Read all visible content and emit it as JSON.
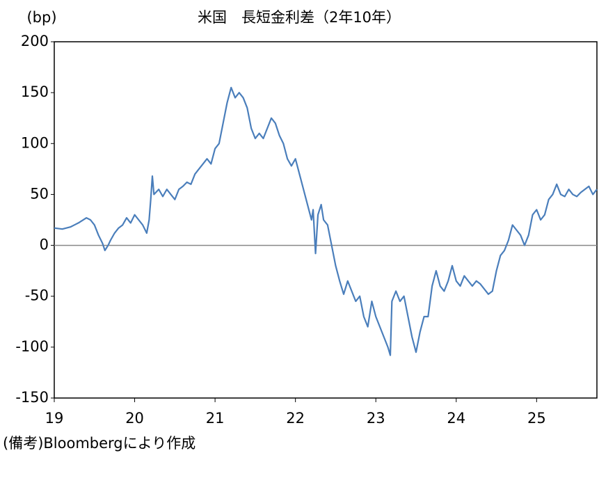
{
  "chart_data": {
    "type": "line",
    "title": "米国　長短金利差（2年10年）",
    "y_label": "(bp)",
    "note": "(備考)Bloombergにより作成",
    "x": [
      19.0,
      19.1,
      19.2,
      19.25,
      19.3,
      19.4,
      19.45,
      19.5,
      19.55,
      19.6,
      19.63,
      19.67,
      19.7,
      19.75,
      19.8,
      19.85,
      19.9,
      19.95,
      20.0,
      20.05,
      20.1,
      20.15,
      20.18,
      20.2,
      20.22,
      20.24,
      20.3,
      20.35,
      20.4,
      20.45,
      20.5,
      20.55,
      20.6,
      20.65,
      20.7,
      20.75,
      20.8,
      20.85,
      20.9,
      20.95,
      21.0,
      21.05,
      21.1,
      21.15,
      21.2,
      21.25,
      21.3,
      21.35,
      21.4,
      21.45,
      21.5,
      21.55,
      21.6,
      21.65,
      21.7,
      21.75,
      21.8,
      21.85,
      21.9,
      21.95,
      22.0,
      22.05,
      22.1,
      22.15,
      22.2,
      22.22,
      22.25,
      22.28,
      22.32,
      22.35,
      22.4,
      22.45,
      22.5,
      22.55,
      22.6,
      22.65,
      22.7,
      22.75,
      22.8,
      22.85,
      22.9,
      22.95,
      23.0,
      23.05,
      23.1,
      23.15,
      23.18,
      23.2,
      23.25,
      23.3,
      23.35,
      23.4,
      23.45,
      23.5,
      23.55,
      23.6,
      23.65,
      23.7,
      23.75,
      23.8,
      23.85,
      23.9,
      23.95,
      24.0,
      24.05,
      24.1,
      24.15,
      24.2,
      24.25,
      24.3,
      24.4,
      24.45,
      24.5,
      24.55,
      24.6,
      24.65,
      24.7,
      24.75,
      24.8,
      24.85,
      24.9,
      24.95,
      25.0,
      25.05,
      25.1,
      25.15,
      25.2,
      25.25,
      25.3,
      25.35,
      25.4,
      25.45,
      25.5,
      25.55,
      25.6,
      25.65,
      25.7,
      25.75
    ],
    "series": [
      {
        "color": "#4a7ebb",
        "values": [
          17,
          16,
          18,
          20,
          22,
          27,
          25,
          20,
          10,
          2,
          -5,
          0,
          5,
          12,
          17,
          20,
          27,
          22,
          30,
          25,
          20,
          12,
          25,
          45,
          68,
          50,
          55,
          48,
          55,
          50,
          45,
          55,
          58,
          62,
          60,
          70,
          75,
          80,
          85,
          80,
          95,
          100,
          120,
          140,
          155,
          145,
          150,
          145,
          135,
          115,
          105,
          110,
          105,
          115,
          125,
          120,
          108,
          100,
          85,
          78,
          85,
          70,
          55,
          40,
          25,
          35,
          -8,
          30,
          40,
          25,
          20,
          0,
          -20,
          -35,
          -48,
          -35,
          -45,
          -55,
          -50,
          -70,
          -80,
          -55,
          -70,
          -80,
          -90,
          -100,
          -108,
          -55,
          -45,
          -55,
          -50,
          -70,
          -90,
          -105,
          -85,
          -70,
          -70,
          -40,
          -25,
          -40,
          -45,
          -35,
          -20,
          -35,
          -40,
          -30,
          -35,
          -40,
          -35,
          -38,
          -48,
          -45,
          -25,
          -10,
          -5,
          5,
          20,
          15,
          10,
          0,
          10,
          30,
          35,
          25,
          30,
          45,
          50,
          60,
          50,
          48,
          55,
          50,
          48,
          52,
          55,
          58,
          50,
          55
        ]
      }
    ],
    "xlim": [
      19,
      25.75
    ],
    "xticks": [
      19,
      20,
      21,
      22,
      23,
      24,
      25
    ],
    "ylim": [
      -150,
      200
    ],
    "yticks": [
      -150,
      -100,
      -50,
      0,
      50,
      100,
      150,
      200
    ],
    "zero_line": true
  }
}
